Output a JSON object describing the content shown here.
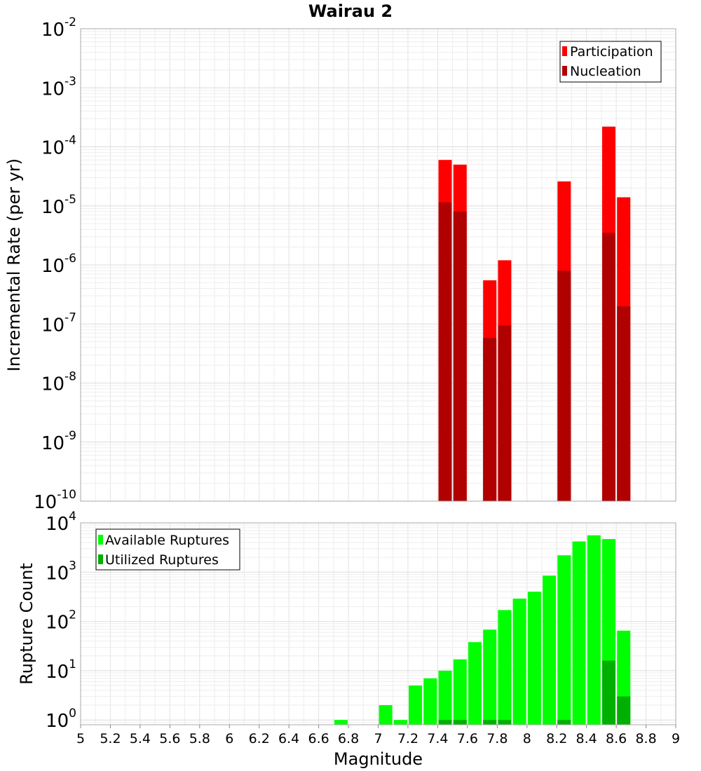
{
  "chart_data": [
    {
      "type": "bar",
      "title": "Wairau 2",
      "xlabel": "",
      "ylabel": "Incremental Rate (per yr)",
      "yscale": "log",
      "xlim": [
        5,
        9
      ],
      "ylim": [
        1e-10,
        0.01
      ],
      "grid": true,
      "legend_position": "top-right",
      "y_ticks": [
        {
          "base": "10",
          "exp": "-10",
          "value": 1e-10
        },
        {
          "base": "10",
          "exp": "-9",
          "value": 1e-09
        },
        {
          "base": "10",
          "exp": "-8",
          "value": 1e-08
        },
        {
          "base": "10",
          "exp": "-7",
          "value": 1e-07
        },
        {
          "base": "10",
          "exp": "-6",
          "value": 1e-06
        },
        {
          "base": "10",
          "exp": "-5",
          "value": 1e-05
        },
        {
          "base": "10",
          "exp": "-4",
          "value": 0.0001
        },
        {
          "base": "10",
          "exp": "-3",
          "value": 0.001
        },
        {
          "base": "10",
          "exp": "-2",
          "value": 0.01
        }
      ],
      "series": [
        {
          "name": "Participation",
          "color": "#ff0000",
          "x": [
            7.45,
            7.55,
            7.75,
            7.85,
            8.25,
            8.55,
            8.65
          ],
          "values": [
            6e-05,
            5e-05,
            5.5e-07,
            1.2e-06,
            2.6e-05,
            0.00022,
            1.4e-05
          ]
        },
        {
          "name": "Nucleation",
          "color": "#b00000",
          "x": [
            7.45,
            7.55,
            7.75,
            7.85,
            8.25,
            8.55,
            8.65
          ],
          "values": [
            1.15e-05,
            8e-06,
            5.8e-08,
            9.5e-08,
            8e-07,
            3.5e-06,
            2e-07
          ]
        }
      ]
    },
    {
      "type": "bar",
      "title": "",
      "xlabel": "Magnitude",
      "ylabel": "Rupture Count",
      "yscale": "log",
      "xlim": [
        5,
        9
      ],
      "ylim": [
        0.8,
        10000
      ],
      "grid": true,
      "legend_position": "top-left",
      "x_ticks": [
        "5",
        "5.2",
        "5.4",
        "5.6",
        "5.8",
        "6",
        "6.2",
        "6.4",
        "6.6",
        "6.8",
        "7",
        "7.2",
        "7.4",
        "7.6",
        "7.8",
        "8",
        "8.2",
        "8.4",
        "8.6",
        "8.8",
        "9"
      ],
      "y_ticks": [
        {
          "base": "10",
          "exp": "0",
          "value": 1
        },
        {
          "base": "10",
          "exp": "1",
          "value": 10
        },
        {
          "base": "10",
          "exp": "2",
          "value": 100
        },
        {
          "base": "10",
          "exp": "3",
          "value": 1000
        },
        {
          "base": "10",
          "exp": "4",
          "value": 10000
        }
      ],
      "series": [
        {
          "name": "Available Ruptures",
          "color": "#00ff00",
          "x": [
            6.75,
            7.05,
            7.15,
            7.25,
            7.35,
            7.45,
            7.55,
            7.65,
            7.75,
            7.85,
            7.95,
            8.05,
            8.15,
            8.25,
            8.35,
            8.45,
            8.55,
            8.65
          ],
          "values": [
            1,
            2,
            1,
            5,
            7,
            10,
            17,
            38,
            68,
            170,
            290,
            400,
            850,
            2200,
            4200,
            5600,
            4700,
            65
          ]
        },
        {
          "name": "Utilized Ruptures",
          "color": "#00b000",
          "x": [
            7.45,
            7.55,
            7.75,
            7.85,
            8.25,
            8.55,
            8.65
          ],
          "values": [
            1,
            1,
            1,
            1,
            1,
            16,
            3
          ]
        }
      ]
    }
  ]
}
